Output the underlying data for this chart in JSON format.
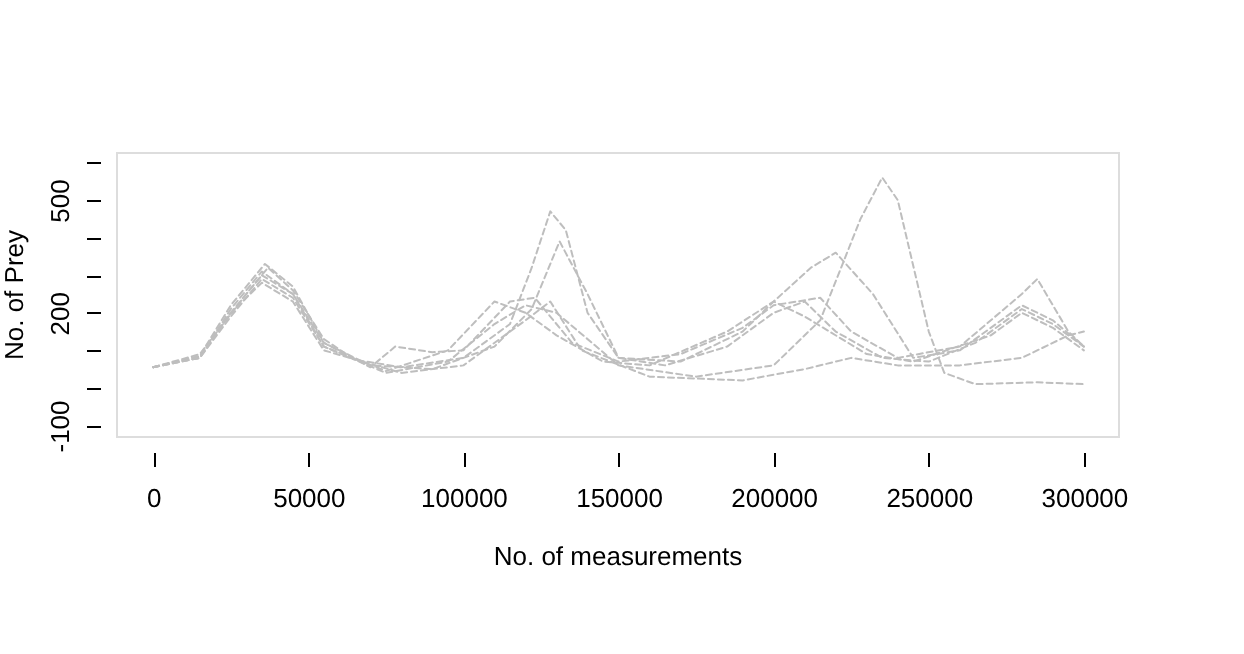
{
  "chart_data": {
    "type": "line",
    "xlabel": "No. of measurements",
    "ylabel": "No. of Prey",
    "xlim": [
      -12000,
      311000
    ],
    "ylim": [
      -128,
      628
    ],
    "xticks": [
      0,
      50000,
      100000,
      150000,
      200000,
      250000,
      300000
    ],
    "yticks": [
      -100,
      {
        "value": 0,
        "label": null
      },
      {
        "value": 100,
        "label": null
      },
      200,
      {
        "value": 300,
        "label": null
      },
      {
        "value": 400,
        "label": null
      },
      500,
      {
        "value": 600,
        "label": null
      }
    ],
    "grid": false,
    "legend": false,
    "marker": "none",
    "line_style": "dashed",
    "series": [
      {
        "color": "#bebebe",
        "x": [
          0,
          15000,
          30000,
          37000,
          45000,
          55000,
          65000,
          80000,
          100000,
          115000,
          122000,
          128000,
          133000,
          140000,
          150000,
          165000,
          185000,
          200000,
          210000,
          220000,
          235000,
          250000,
          265000,
          280000,
          290000,
          300000
        ],
        "values": [
          55,
          90,
          250,
          320,
          260,
          130,
          75,
          55,
          80,
          170,
          320,
          470,
          420,
          200,
          80,
          60,
          110,
          200,
          230,
          150,
          80,
          70,
          120,
          210,
          170,
          110
        ]
      },
      {
        "color": "#bebebe",
        "x": [
          0,
          15000,
          25000,
          35000,
          45000,
          55000,
          70000,
          90000,
          110000,
          122000,
          131000,
          140000,
          150000,
          170000,
          190000,
          200000,
          212000,
          220000,
          232000,
          245000,
          260000,
          280000,
          290000,
          300000
        ],
        "values": [
          55,
          85,
          200,
          300,
          250,
          120,
          60,
          50,
          110,
          210,
          390,
          250,
          80,
          70,
          150,
          230,
          320,
          360,
          250,
          80,
          100,
          220,
          180,
          110
        ]
      },
      {
        "color": "#bebebe",
        "x": [
          0,
          15000,
          25000,
          35000,
          45000,
          55000,
          75000,
          95000,
          110000,
          120000,
          130000,
          150000,
          175000,
          200000,
          215000,
          228000,
          235000,
          240000,
          250000,
          255000,
          265000,
          285000,
          300000
        ],
        "values": [
          55,
          80,
          190,
          290,
          240,
          110,
          40,
          70,
          170,
          220,
          200,
          60,
          30,
          60,
          180,
          450,
          560,
          500,
          150,
          40,
          10,
          15,
          10
        ]
      },
      {
        "color": "#bebebe",
        "x": [
          0,
          15000,
          25000,
          36000,
          45000,
          55000,
          70000,
          78000,
          90000,
          100000,
          115000,
          123000,
          135000,
          150000,
          170000,
          190000,
          200000,
          215000,
          225000,
          240000,
          260000,
          280000,
          285000,
          295000,
          300000
        ],
        "values": [
          55,
          85,
          220,
          330,
          270,
          120,
          55,
          110,
          95,
          100,
          230,
          240,
          120,
          70,
          90,
          160,
          220,
          240,
          150,
          80,
          110,
          250,
          290,
          150,
          110
        ]
      },
      {
        "color": "#bebebe",
        "x": [
          0,
          15000,
          25000,
          35000,
          45000,
          55000,
          75000,
          95000,
          110000,
          120000,
          130000,
          145000,
          160000,
          185000,
          200000,
          210000,
          230000,
          245000,
          270000,
          280000,
          290000,
          300000
        ],
        "values": [
          55,
          80,
          210,
          310,
          250,
          110,
          45,
          100,
          230,
          200,
          140,
          70,
          60,
          150,
          230,
          190,
          90,
          70,
          140,
          200,
          160,
          100
        ]
      },
      {
        "color": "#bebebe",
        "x": [
          0,
          15000,
          25000,
          35000,
          45000,
          55000,
          80000,
          100000,
          120000,
          128000,
          138000,
          160000,
          190000,
          210000,
          225000,
          240000,
          260000,
          280000,
          295000,
          300000
        ],
        "values": [
          55,
          80,
          200,
          280,
          230,
          100,
          40,
          60,
          180,
          230,
          100,
          30,
          20,
          50,
          80,
          60,
          60,
          80,
          140,
          150
        ]
      }
    ]
  }
}
